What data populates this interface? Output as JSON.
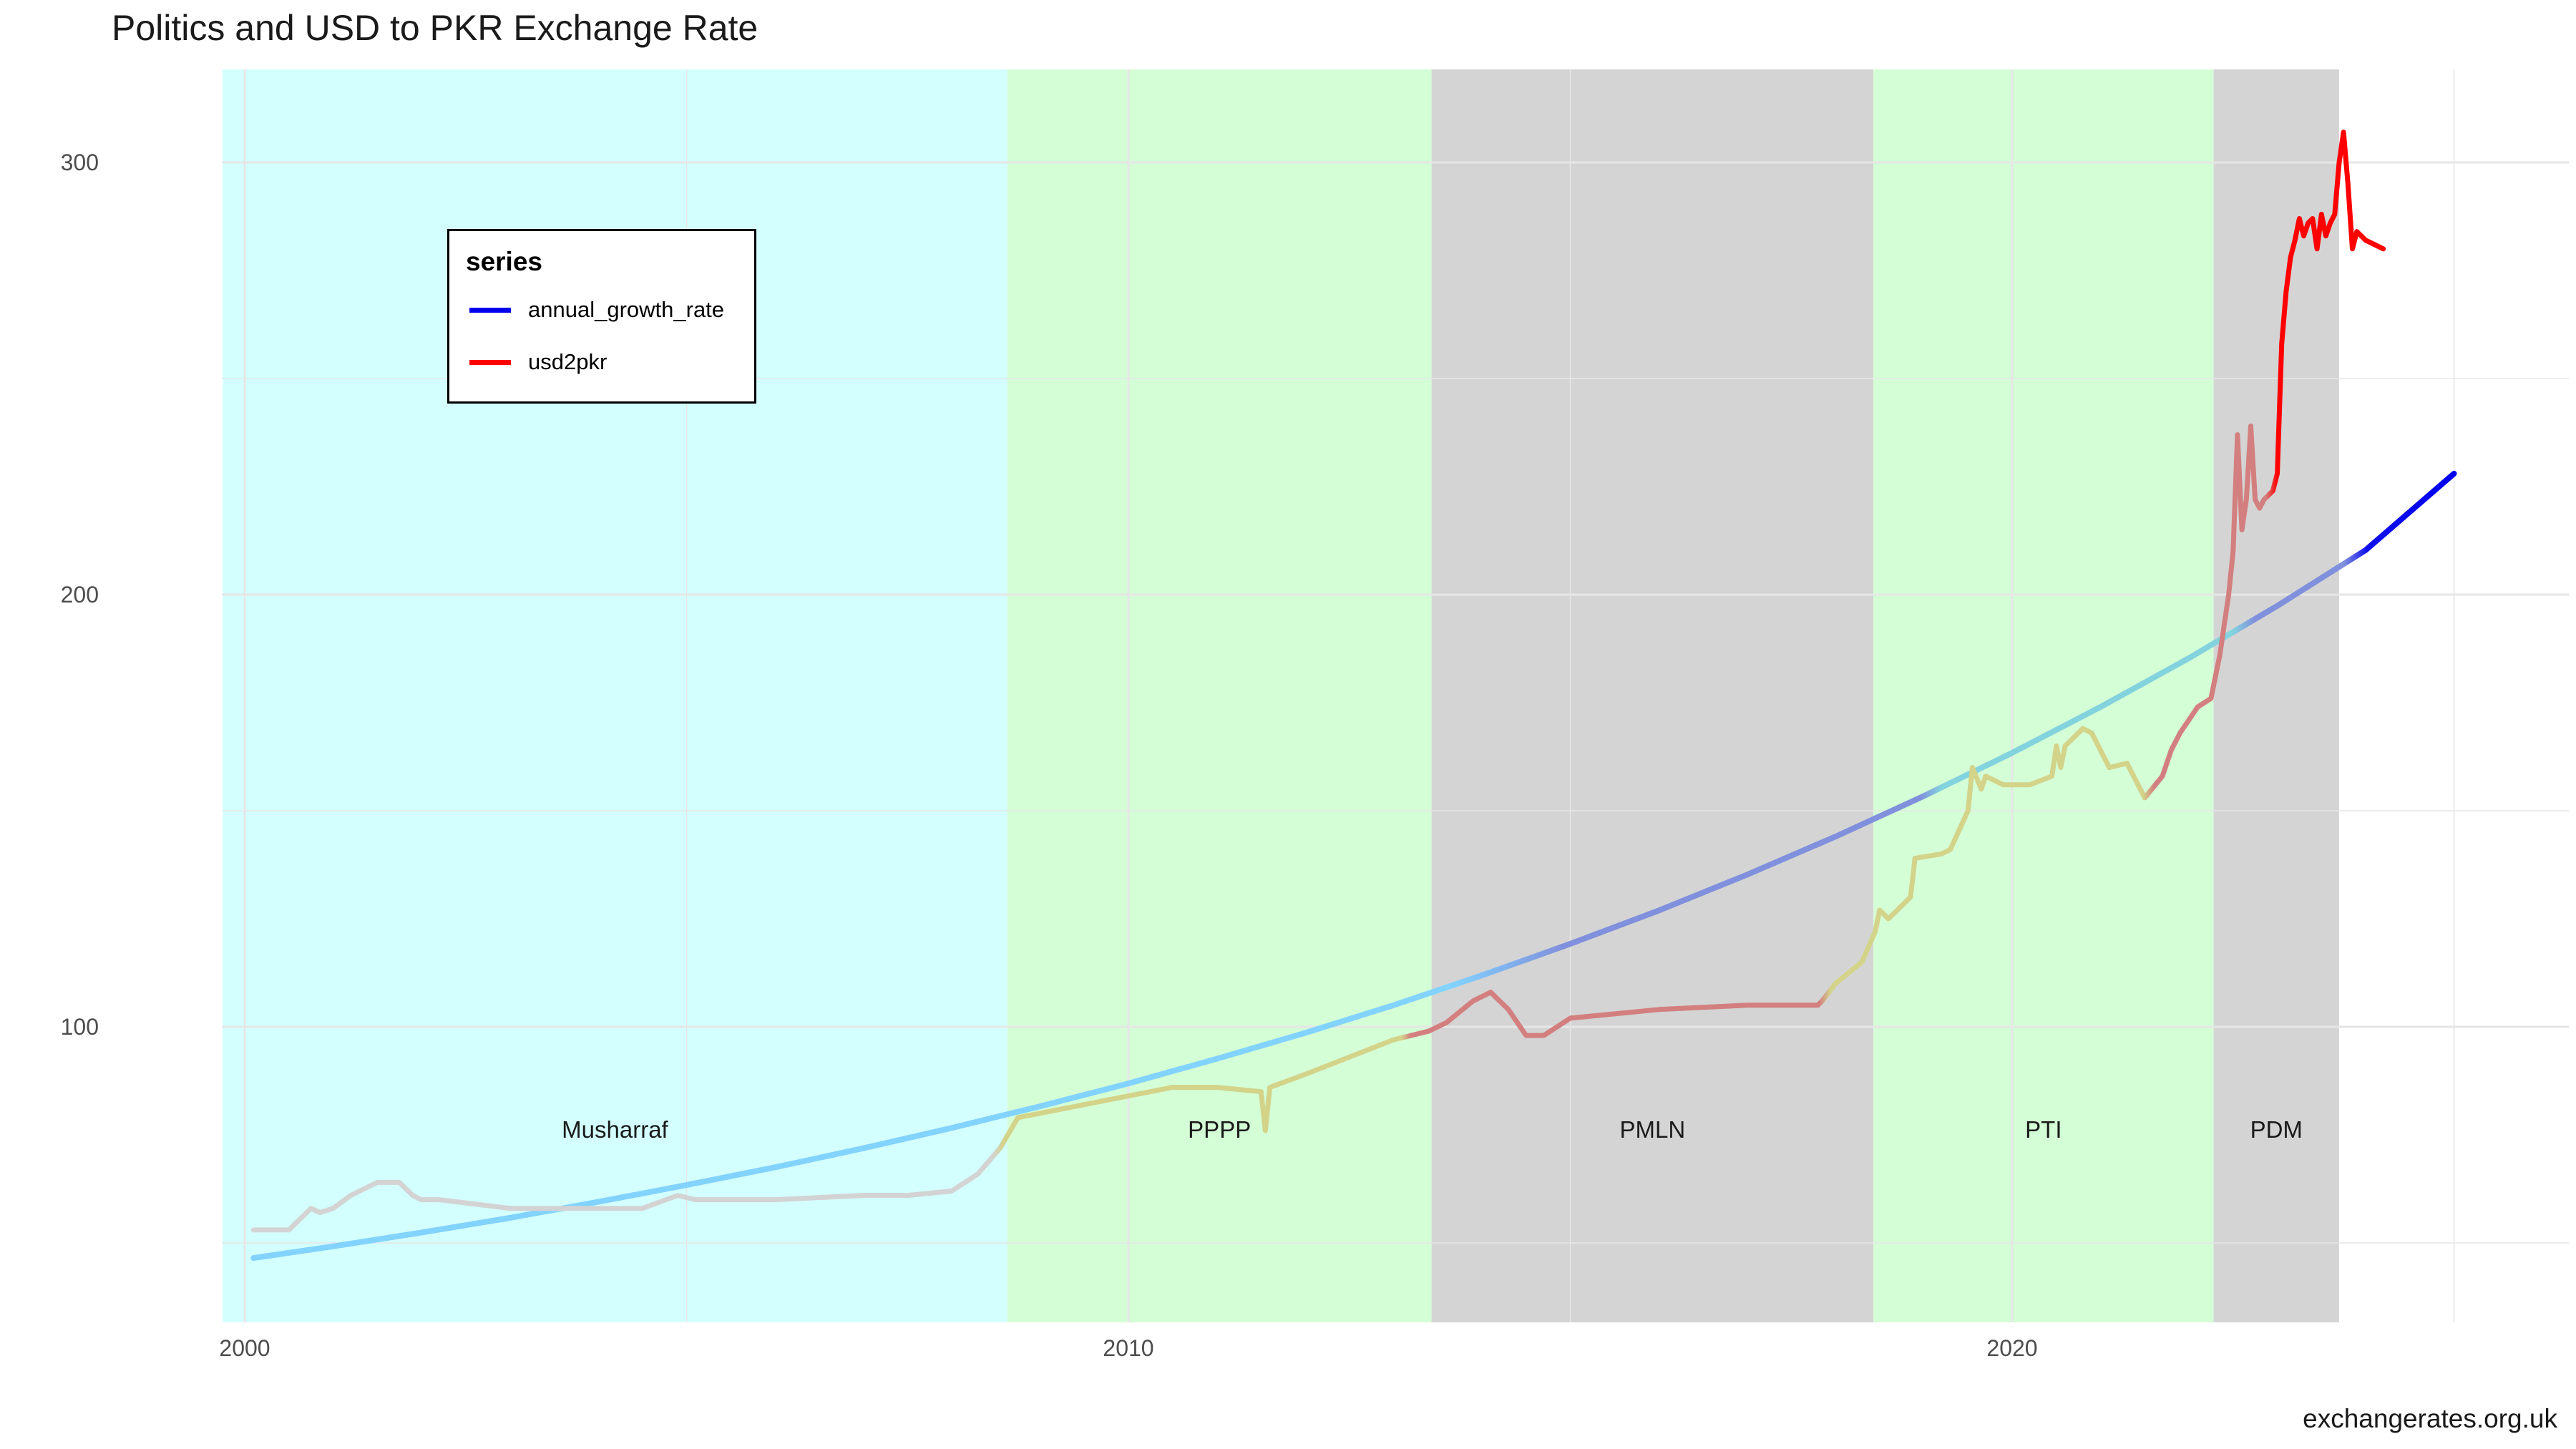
{
  "title": "Politics and USD to PKR Exchange Rate",
  "caption": "exchangerates.org.uk",
  "legend": {
    "title": "series",
    "items": [
      {
        "label": "annual_growth_rate",
        "color": "#0000ee"
      },
      {
        "label": "usd2pkr",
        "color": "#ff0000"
      }
    ]
  },
  "chart_data": {
    "type": "line",
    "title": "Politics and USD to PKR Exchange Rate",
    "xlabel": "",
    "ylabel": "",
    "xlim": [
      1999.75,
      2025.6
    ],
    "ylim": [
      33,
      322
    ],
    "x_ticks": [
      2000,
      2010,
      2020
    ],
    "y_ticks": [
      100,
      200,
      300
    ],
    "grid": true,
    "legend_position": "top-left",
    "eras": [
      {
        "label": "Musharraf",
        "start": 1999.75,
        "end": 2008.63,
        "color": "#d4ffff"
      },
      {
        "label": "PPPP",
        "start": 2008.63,
        "end": 2013.43,
        "color": "#d4ffd6"
      },
      {
        "label": "PMLN",
        "start": 2013.43,
        "end": 2018.43,
        "color": "#d4d4d4"
      },
      {
        "label": "PTI",
        "start": 2018.43,
        "end": 2022.28,
        "color": "#d4ffd6"
      },
      {
        "label": "PDM",
        "start": 2022.28,
        "end": 2023.7,
        "color": "#d4d4d4"
      }
    ],
    "series": [
      {
        "name": "annual_growth_rate",
        "color": "#0000ee",
        "x": [
          2000.1,
          2001,
          2002,
          2003,
          2004,
          2005,
          2006,
          2007,
          2008,
          2009,
          2010,
          2011,
          2012,
          2013,
          2014,
          2015,
          2016,
          2017,
          2018,
          2019,
          2020,
          2021,
          2022,
          2023,
          2024,
          2025
        ],
        "values": [
          46.5,
          49.2,
          52.4,
          55.8,
          59.5,
          63.4,
          67.5,
          71.9,
          76.6,
          81.6,
          86.9,
          92.6,
          98.6,
          105.0,
          111.9,
          119.2,
          126.9,
          135.2,
          144.0,
          153.4,
          163.4,
          174.0,
          185.3,
          197.4,
          210.3,
          228.0
        ]
      },
      {
        "name": "usd2pkr",
        "color": "#ff0000",
        "x": [
          2000.1,
          2000.5,
          2000.75,
          2000.85,
          2001.0,
          2001.2,
          2001.5,
          2001.75,
          2001.9,
          2002.0,
          2002.2,
          2003.0,
          2003.5,
          2004.0,
          2004.5,
          2004.9,
          2005.1,
          2006.0,
          2007.0,
          2007.5,
          2008.0,
          2008.3,
          2008.55,
          2008.75,
          2009.0,
          2009.5,
          2010.0,
          2010.5,
          2011.0,
          2011.5,
          2011.55,
          2011.6,
          2012.0,
          2012.5,
          2013.0,
          2013.4,
          2013.6,
          2013.9,
          2014.1,
          2014.3,
          2014.5,
          2014.7,
          2015.0,
          2015.5,
          2016.0,
          2017.0,
          2017.8,
          2017.85,
          2018.0,
          2018.3,
          2018.45,
          2018.5,
          2018.6,
          2018.85,
          2018.9,
          2019.2,
          2019.3,
          2019.5,
          2019.55,
          2019.65,
          2019.7,
          2019.9,
          2020.2,
          2020.45,
          2020.5,
          2020.55,
          2020.6,
          2020.8,
          2020.9,
          2021.1,
          2021.3,
          2021.5,
          2021.7,
          2021.8,
          2021.9,
          2022.1,
          2022.25,
          2022.35,
          2022.4,
          2022.45,
          2022.5,
          2022.55,
          2022.6,
          2022.65,
          2022.7,
          2022.75,
          2022.8,
          2022.85,
          2022.95,
          2023.0,
          2023.05,
          2023.1,
          2023.15,
          2023.2,
          2023.25,
          2023.3,
          2023.35,
          2023.4,
          2023.45,
          2023.5,
          2023.55,
          2023.6,
          2023.65,
          2023.7,
          2023.75,
          2023.8,
          2023.85,
          2023.9,
          2024.0,
          2024.2
        ],
        "values": [
          53,
          53,
          58,
          57,
          58,
          61,
          64,
          64,
          61,
          60,
          60,
          58,
          58,
          58,
          58,
          61,
          60,
          60,
          61,
          61,
          62,
          66,
          72,
          79,
          80,
          82,
          84,
          86,
          86,
          85,
          76,
          86,
          89,
          93,
          97,
          99,
          101,
          106,
          108,
          104,
          98,
          98,
          102,
          103,
          104,
          105,
          105,
          106,
          110,
          115,
          122,
          127,
          125,
          130,
          139,
          140,
          141,
          150,
          160,
          155,
          158,
          156,
          156,
          158,
          165,
          160,
          165,
          169,
          168,
          160,
          161,
          153,
          158,
          164,
          168,
          174,
          176,
          186,
          193,
          200,
          210,
          237,
          215,
          222,
          239,
          222,
          220,
          222,
          224,
          228,
          258,
          270,
          278,
          282,
          287,
          283,
          286,
          287,
          280,
          288,
          283,
          286,
          288,
          300,
          307,
          295,
          280,
          284,
          282,
          280
        ]
      }
    ]
  }
}
